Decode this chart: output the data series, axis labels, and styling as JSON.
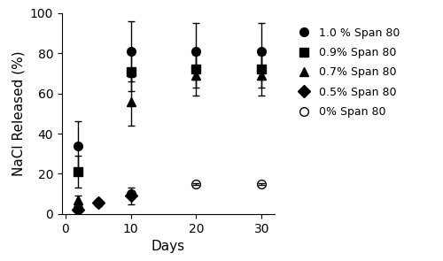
{
  "title": "",
  "xlabel": "Days",
  "ylabel": "NaCl Released (%)",
  "ylim": [
    0,
    100
  ],
  "xlim": [
    -0.5,
    32
  ],
  "xticks": [
    0,
    10,
    20,
    30
  ],
  "yticks": [
    0,
    20,
    40,
    60,
    80,
    100
  ],
  "series": [
    {
      "label": "1.0 % Span 80",
      "marker": "o",
      "fillstyle": "full",
      "color": "black",
      "x": [
        2,
        5,
        10,
        20,
        30
      ],
      "y": [
        34,
        5.5,
        81,
        81,
        81
      ],
      "yerr": [
        12,
        1.5,
        15,
        14,
        14
      ]
    },
    {
      "label": "0.9% Span 80",
      "marker": "s",
      "fillstyle": "full",
      "color": "black",
      "x": [
        2,
        10,
        20,
        30
      ],
      "y": [
        21,
        71,
        72,
        72
      ],
      "yerr": [
        8,
        10,
        9,
        9
      ]
    },
    {
      "label": "0.7% Span 80",
      "marker": "^",
      "fillstyle": "full",
      "color": "black",
      "x": [
        2,
        10,
        20,
        30
      ],
      "y": [
        7,
        56,
        69,
        69
      ],
      "yerr": [
        2,
        12,
        10,
        10
      ]
    },
    {
      "label": "0.5% Span 80",
      "marker": "D",
      "fillstyle": "full",
      "color": "black",
      "x": [
        2,
        5,
        10
      ],
      "y": [
        2,
        5.5,
        9
      ],
      "yerr": [
        0.5,
        1,
        4
      ]
    },
    {
      "label": "0% Span 80",
      "marker": "o",
      "fillstyle": "none",
      "color": "black",
      "x": [
        2,
        10,
        20,
        30
      ],
      "y": [
        3,
        10,
        15,
        15
      ],
      "yerr": [
        0.3,
        0.5,
        0.5,
        0.5
      ]
    }
  ],
  "background_color": "#ffffff",
  "legend_fontsize": 9,
  "axis_fontsize": 11,
  "tick_fontsize": 10,
  "marker_size": 7,
  "capsize": 3,
  "elinewidth": 1.0
}
